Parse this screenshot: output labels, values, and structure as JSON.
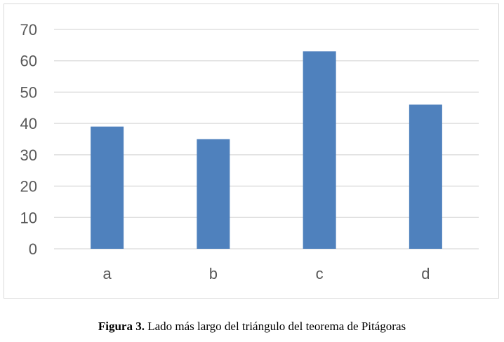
{
  "colors": {
    "bar": "#4f81bd",
    "grid": "#d9d9d9",
    "axis_text": "#595959"
  },
  "caption": {
    "label": "Figura 3.",
    "text": " Lado más largo del triángulo del teorema de Pitágoras"
  },
  "chart_data": {
    "type": "bar",
    "categories": [
      "a",
      "b",
      "c",
      "d"
    ],
    "values": [
      39,
      35,
      63,
      46
    ],
    "title": "",
    "xlabel": "",
    "ylabel": "",
    "ylim": [
      0,
      70
    ],
    "yticks": [
      0,
      10,
      20,
      30,
      40,
      50,
      60,
      70
    ],
    "grid": true,
    "legend": "none"
  }
}
